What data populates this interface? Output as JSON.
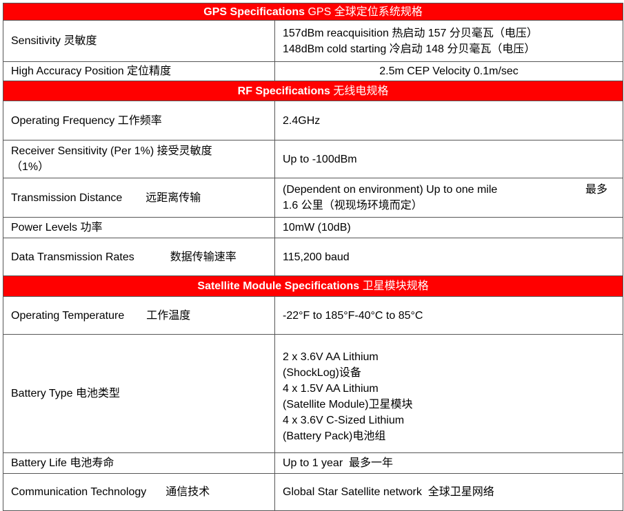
{
  "sections": [
    {
      "title": "GPS Specifications",
      "title_cn": "GPS 全球定位系统规格",
      "rows": [
        {
          "label": "Sensitivity 灵敏度",
          "value": [
            "157dBm reacquisition 热启动 157 分贝毫瓦（电压）",
            "148dBm cold starting 冷启动 148 分贝毫瓦（电压）"
          ]
        },
        {
          "label": "High Accuracy Position 定位精度",
          "value": [
            "2.5m CEP Velocity 0.1m/sec"
          ]
        }
      ]
    },
    {
      "title": "RF Specifications",
      "title_cn": "无线电规格",
      "rows": [
        {
          "label": "Operating Frequency 工作频率",
          "value": [
            "2.4GHz"
          ]
        },
        {
          "label": "Receiver Sensitivity (Per 1%)  接受灵敏度",
          "label2": "（1%）",
          "value": [
            "Up to -100dBm"
          ]
        },
        {
          "label": "Transmission Distance",
          "label_cn": "远距离传输",
          "value": [
            "(Dependent on environment) Up to one mile",
            "最多",
            "1.6 公里（视现场环境而定）"
          ]
        },
        {
          "label": "Power Levels 功率",
          "value": [
            "10mW (10dB)"
          ]
        },
        {
          "label": "Data Transmission Rates",
          "label_cn": "数据传输速率",
          "value": [
            "115,200 baud"
          ]
        }
      ]
    },
    {
      "title": "Satellite Module Specifications",
      "title_cn": "卫星模块规格",
      "rows": [
        {
          "label": "Operating Temperature",
          "label_cn": "工作温度",
          "value": [
            "-22°F to 185°F-40°C to 85°C"
          ]
        },
        {
          "label": "Battery Type 电池类型",
          "value": [
            "2 x 3.6V AA Lithium",
            "(ShockLog)设备",
            "4 x 1.5V AA Lithium",
            "(Satellite Module)卫星模块",
            "4 x 3.6V C-Sized Lithium",
            "(Battery Pack)电池组"
          ]
        },
        {
          "label": "Battery Life 电池寿命",
          "value": [
            "Up to 1 year  最多一年"
          ]
        },
        {
          "label": "Communication Technology",
          "label_cn": "通信技术",
          "value": [
            "Global Star Satellite network  全球卫星网络"
          ]
        }
      ]
    }
  ]
}
